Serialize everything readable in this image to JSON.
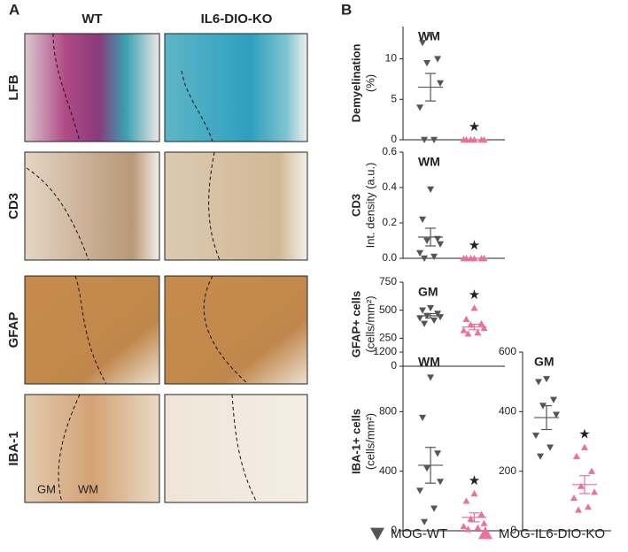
{
  "panel_labels": [
    "A",
    "B"
  ],
  "panel_a": {
    "columns": [
      "WT",
      "IL6-DIO-KO"
    ],
    "rows": [
      "LFB",
      "CD3",
      "GFAP",
      "IBA-1"
    ],
    "region_labels": [
      "GM",
      "WM"
    ]
  },
  "legend": [
    {
      "name": "MOG-WT",
      "color": "#555555"
    },
    {
      "name": "MOG-IL6-DIO-KO",
      "color": "#ee6f9b"
    }
  ],
  "chart_data": [
    {
      "type": "scatter",
      "ylabel": [
        "Demyelination",
        "(%)"
      ],
      "annotation": "WM",
      "star": "★",
      "ylim": [
        0,
        14
      ],
      "yticks": [
        0,
        5,
        10
      ],
      "series": [
        {
          "color": "#555555",
          "values": [
            13,
            12,
            10,
            9.5,
            7,
            4,
            0,
            0
          ],
          "mean": 6.5,
          "sem": 1.7
        },
        {
          "color": "#ee6f9b",
          "values": [
            0,
            0,
            0,
            0,
            0,
            0
          ],
          "mean": 0,
          "sem": 0
        }
      ]
    },
    {
      "type": "scatter",
      "ylabel": [
        "CD3",
        "Int. density (a.u.)"
      ],
      "annotation": "WM",
      "star": "★",
      "ylim": [
        0,
        0.6
      ],
      "yticks": [
        {
          "value": 0,
          "label": "0.0"
        },
        0.2,
        0.4,
        0.6
      ],
      "series": [
        {
          "color": "#555555",
          "values": [
            0.39,
            0.22,
            0.11,
            0.1,
            0.08,
            0.03,
            0.01,
            0
          ],
          "mean": 0.12,
          "sem": 0.05
        },
        {
          "color": "#ee6f9b",
          "values": [
            0,
            0,
            0,
            0,
            0,
            0
          ],
          "mean": 0,
          "sem": 0
        }
      ]
    },
    {
      "type": "scatter",
      "ylabel": [
        "GFAP+ cells",
        "(cells/mm²)"
      ],
      "annotation": "GM",
      "star": "★",
      "ylim": [
        0,
        750
      ],
      "yticks": [
        0,
        250,
        500,
        750
      ],
      "series": [
        {
          "color": "#555555",
          "values": [
            520,
            500,
            470,
            450,
            440,
            430,
            410,
            380
          ],
          "mean": 450,
          "sem": 20
        },
        {
          "color": "#ee6f9b",
          "values": [
            520,
            420,
            380,
            370,
            340,
            320,
            300,
            290
          ],
          "mean": 350,
          "sem": 25
        }
      ]
    },
    {
      "type": "scatter",
      "ylabel": [
        "IBA-1+ cells",
        "(cells/mm²)"
      ],
      "annotation": "WM",
      "star": "★",
      "ylim": [
        0,
        1200
      ],
      "yticks": [
        0,
        400,
        800,
        1200
      ],
      "series": [
        {
          "color": "#555555",
          "values": [
            1030,
            760,
            520,
            420,
            330,
            270,
            150,
            60
          ],
          "mean": 440,
          "sem": 120
        },
        {
          "color": "#ee6f9b",
          "values": [
            250,
            200,
            110,
            80,
            50,
            30,
            20,
            10
          ],
          "mean": 90,
          "sem": 30
        }
      ]
    },
    {
      "type": "scatter",
      "annotation": "GM",
      "star": "★",
      "ylim": [
        0,
        600
      ],
      "yticks": [
        0,
        200,
        400,
        600
      ],
      "series": [
        {
          "color": "#555555",
          "values": [
            510,
            500,
            440,
            420,
            390,
            320,
            280,
            250
          ],
          "mean": 380,
          "sem": 40
        },
        {
          "color": "#ee6f9b",
          "values": [
            280,
            250,
            200,
            150,
            130,
            110,
            80,
            70
          ],
          "mean": 155,
          "sem": 30
        }
      ]
    }
  ]
}
